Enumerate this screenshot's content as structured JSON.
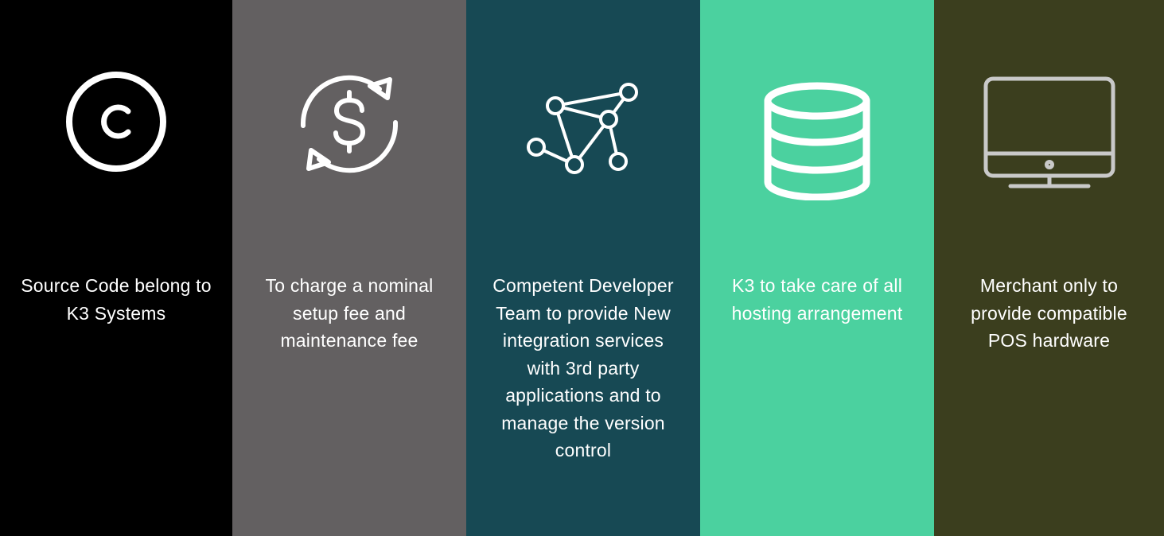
{
  "panels": [
    {
      "text": "Source Code belong to K3 Systems",
      "icon": "copyright-icon",
      "background": "#000000"
    },
    {
      "text": "To charge a nominal setup fee and maintenance fee",
      "icon": "dollar-refresh-icon",
      "background": "#636061"
    },
    {
      "text": "Competent Developer Team to provide New integration services with 3rd party applications and to manage the version control",
      "icon": "network-nodes-icon",
      "background": "#174954"
    },
    {
      "text": "K3 to take care of all hosting arrangement",
      "icon": "database-icon",
      "background": "#4bd19f"
    },
    {
      "text": "Merchant only to provide compatible POS hardware",
      "icon": "monitor-icon",
      "background": "#3b3e1e"
    }
  ]
}
